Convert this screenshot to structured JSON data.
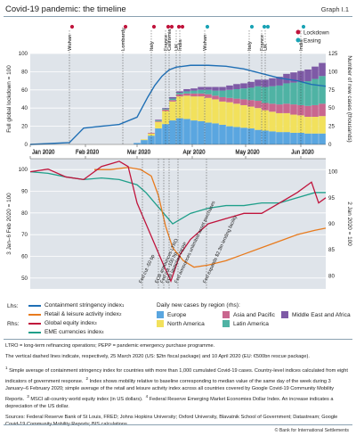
{
  "title": "Covid-19 pandemic: the timeline",
  "graph_number": "Graph I.1",
  "top_markers": [
    "Lockdown",
    "Easing"
  ],
  "colors": {
    "lockdown": "#c0143c",
    "easing": "#1aa3b5",
    "stringency": "#1f6fb5",
    "retail": "#e87b1e",
    "equity": "#c0143c",
    "eme_fx": "#1f9f8a",
    "europe": "#5aa6e0",
    "north_america": "#f2e15c",
    "asia_pacific": "#c9678f",
    "latin_america": "#4fb3a4",
    "middle_east_africa": "#7e5aa6"
  },
  "chart_data": [
    {
      "type": "area",
      "name": "top-panel",
      "x_tick_labels": [
        "Jan 2020",
        "Feb 2020",
        "Mar 2020",
        "Apr 2020",
        "May 2020",
        "Jun 2020"
      ],
      "lhs_label": "Full global lockdown = 100",
      "rhs_label": "Number of new cases (thousands)",
      "lhs_ticks": [
        "0",
        "20",
        "40",
        "60",
        "80",
        "100"
      ],
      "rhs_ticks": [
        "0",
        "25",
        "50",
        "75",
        "100",
        "125"
      ],
      "lhs_range": [
        0,
        100
      ],
      "rhs_range": [
        0,
        125
      ],
      "events": [
        {
          "label": "Wuhan",
          "kind": "lockdown",
          "day": 22
        },
        {
          "label": "Lombardy",
          "kind": "lockdown",
          "day": 52
        },
        {
          "label": "Italy",
          "kind": "lockdown",
          "day": 68
        },
        {
          "label": "France",
          "kind": "lockdown",
          "day": 76
        },
        {
          "label": "California",
          "kind": "lockdown",
          "day": 78
        },
        {
          "label": "UK",
          "kind": "lockdown",
          "day": 82
        },
        {
          "label": "India",
          "kind": "lockdown",
          "day": 84
        },
        {
          "label": "Wuhan",
          "kind": "easing",
          "day": 98
        },
        {
          "label": "Italy",
          "kind": "easing",
          "day": 123
        },
        {
          "label": "France",
          "kind": "easing",
          "day": 130
        },
        {
          "label": "UK",
          "kind": "easing",
          "day": 132
        },
        {
          "label": "India",
          "kind": "easing",
          "day": 152
        }
      ],
      "stringency_index": {
        "days": [
          0,
          22,
          30,
          40,
          50,
          60,
          66,
          70,
          74,
          78,
          82,
          86,
          90,
          100,
          110,
          120,
          130,
          140,
          150,
          158,
          166
        ],
        "values": [
          0,
          2,
          18,
          20,
          22,
          30,
          52,
          65,
          75,
          82,
          85,
          86,
          87,
          87,
          86,
          83,
          78,
          73,
          70,
          66,
          64
        ]
      },
      "new_cases_thousands": {
        "days": [
          60,
          64,
          68,
          72,
          76,
          80,
          84,
          88,
          92,
          96,
          100,
          104,
          108,
          112,
          116,
          120,
          124,
          128,
          132,
          136,
          140,
          144,
          148,
          152,
          156,
          160,
          164
        ],
        "europe": [
          2,
          6,
          12,
          22,
          28,
          33,
          36,
          35,
          33,
          32,
          30,
          29,
          27,
          25,
          24,
          23,
          22,
          20,
          19,
          18,
          17,
          17,
          16,
          16,
          15,
          15,
          15
        ],
        "north_america": [
          0,
          1,
          3,
          9,
          18,
          26,
          30,
          32,
          33,
          34,
          34,
          33,
          32,
          33,
          32,
          31,
          30,
          30,
          28,
          27,
          26,
          26,
          25,
          24,
          23,
          23,
          24
        ],
        "asia_pacific": [
          0,
          0,
          1,
          1,
          2,
          2,
          3,
          3,
          4,
          4,
          5,
          5,
          6,
          6,
          7,
          8,
          9,
          10,
          10,
          11,
          12,
          13,
          14,
          14,
          15,
          16,
          17
        ],
        "latin_america": [
          0,
          0,
          0,
          1,
          1,
          2,
          2,
          3,
          4,
          5,
          6,
          7,
          9,
          11,
          13,
          15,
          17,
          20,
          22,
          24,
          26,
          28,
          30,
          32,
          34,
          36,
          38
        ],
        "middle_east_africa": [
          0,
          0,
          0,
          1,
          1,
          2,
          2,
          3,
          3,
          4,
          4,
          5,
          5,
          6,
          7,
          7,
          8,
          9,
          10,
          11,
          12,
          13,
          14,
          15,
          16,
          17,
          18
        ]
      }
    },
    {
      "type": "line",
      "name": "bottom-panel",
      "x_tick_labels": [
        "Jan 2020",
        "Feb 2020",
        "Mar 2020",
        "Apr 2020",
        "May 2020",
        "Jun 2020"
      ],
      "lhs_label": "3 Jan–6 Feb 2020 = 100",
      "rhs_label": "2 Jan 2020 = 100",
      "lhs_ticks": [
        "50",
        "60",
        "70",
        "80",
        "90",
        "100"
      ],
      "rhs_ticks": [
        "80",
        "85",
        "90",
        "95",
        "100"
      ],
      "lhs_range": [
        45,
        105
      ],
      "rhs_range": [
        77.5,
        102.5
      ],
      "policy_events": [
        {
          "label": "Fed cut -50 bp",
          "day": 63
        },
        {
          "label": "ECB announces LTRO",
          "day": 72
        },
        {
          "label": "Fed cut -100 bp",
          "day": 75
        },
        {
          "label": "ECB launches PEPP",
          "day": 78
        },
        {
          "label": "Fed announces unlimited asset purchases",
          "day": 83
        },
        {
          "label": "Fed expands $2.3tn lending facility",
          "day": 99
        }
      ],
      "retail_leisure": {
        "days": [
          36,
          45,
          55,
          62,
          68,
          72,
          76,
          80,
          86,
          92,
          100,
          110,
          120,
          130,
          140,
          150,
          160,
          166
        ],
        "values": [
          100,
          100,
          101,
          100,
          97,
          88,
          74,
          64,
          58,
          55,
          56,
          58,
          61,
          64,
          67,
          70,
          72,
          73
        ]
      },
      "equity_index": {
        "days": [
          0,
          10,
          20,
          30,
          40,
          50,
          55,
          60,
          65,
          70,
          75,
          79,
          84,
          90,
          100,
          110,
          120,
          130,
          140,
          150,
          158,
          162,
          166
        ],
        "values": [
          100,
          100.5,
          99,
          98.5,
          101,
          102,
          101,
          94,
          90,
          86,
          82,
          79,
          84,
          87,
          90,
          91,
          92,
          92,
          94,
          96,
          98,
          94,
          95
        ]
      },
      "eme_currencies": {
        "days": [
          0,
          10,
          20,
          30,
          40,
          50,
          60,
          65,
          70,
          75,
          80,
          85,
          90,
          100,
          110,
          120,
          130,
          140,
          150,
          160,
          166
        ],
        "values": [
          100,
          99.7,
          99,
          98.5,
          98.8,
          98.5,
          97.5,
          96,
          94,
          92,
          90,
          91,
          92,
          93,
          93.5,
          93.5,
          94,
          94,
          95,
          96,
          96
        ]
      }
    }
  ],
  "legend": {
    "lhs_prefix": "Lhs:",
    "rhs_prefix": "Rhs:",
    "stringency": "Containment stringency index",
    "stringency_sup": "1",
    "retail": "Retail & leisure activity index",
    "retail_sup": "2",
    "equity": "Global equity index",
    "equity_sup": "3",
    "eme_fx": "EME currencies index",
    "eme_fx_sup": "4",
    "cases_title": "Daily new cases by region (rhs):",
    "europe": "Europe",
    "north_america": "North America",
    "asia_pacific": "Asia and Pacific",
    "latin_america": "Latin America",
    "middle_east_africa": "Middle East and Africa"
  },
  "notes": {
    "abbrev": "LTRO = long-term refinancing operations; PEPP = pandemic emergency purchase programme.",
    "dashed": "The vertical dashed lines indicate, respectively, 25 March 2020 (US: $2tn fiscal package) and 10 April 2020 (EU: €500bn rescue package).",
    "fn1_num": "1",
    "fn1": "Simple average of containment stringency index for countries with more than 1,000 cumulated Covid-19 cases. Country-level indices calculated from eight indicators of government response.",
    "fn2_num": "2",
    "fn2": "Index shows mobility relative to baseline corresponding to median value of the same day of the week during 3 January–6 February 2020; simple average of the retail and leisure activity index across all countries covered by Google Covid-19 Community Mobility Reports.",
    "fn3_num": "3",
    "fn3": "MSCI all-country world equity index (in US dollars).",
    "fn4_num": "4",
    "fn4": "Federal Reserve Emerging Market Economies Dollar Index. An increase indicates a depreciation of the US dollar.",
    "sources": "Sources: Federal Reserve Bank of St Louis, FRED; Johns Hopkins University; Oxford University, Blavatnik School of Government; Datastream; Google Covid-19 Community Mobility Reports; BIS calculations."
  },
  "copyright": "© Bank for International Settlements"
}
